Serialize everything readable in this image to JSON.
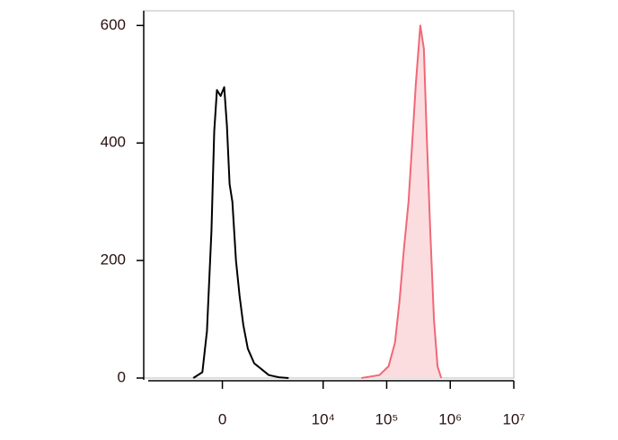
{
  "chart_data": {
    "type": "area",
    "xscale": "arcsinh",
    "xlim": [
      -3800,
      10000000
    ],
    "xticks": [
      0,
      {
        "value": 10000,
        "label": "10⁴"
      },
      {
        "value": 100000,
        "label": "10⁵"
      },
      {
        "value": 1000000,
        "label": "10⁶"
      },
      {
        "value": 10000000,
        "label": "10⁷"
      }
    ],
    "ylim": [
      0,
      625
    ],
    "yticks": [
      0,
      200,
      400,
      600
    ],
    "series": [
      {
        "color": "#000000",
        "fill": "none",
        "x": [
          -655,
          -410,
          -306,
          -211,
          -156,
          -103,
          -34,
          34,
          86,
          138,
          192,
          267,
          346,
          433,
          551,
          742,
          1011,
          1347,
          2033,
          2844
        ],
        "values": [
          0,
          10,
          80,
          250,
          420,
          490,
          480,
          495,
          430,
          330,
          300,
          200,
          140,
          90,
          50,
          25,
          15,
          5,
          1,
          0
        ]
      },
      {
        "color": "#f06878",
        "fill": "#fbdde0",
        "x": [
          40000,
          77000,
          107000,
          135000,
          159000,
          187000,
          221000,
          252000,
          287000,
          338000,
          385000,
          425000,
          485000,
          554000,
          631000,
          721000
        ],
        "values": [
          0,
          5,
          20,
          60,
          130,
          220,
          300,
          400,
          500,
          600,
          560,
          420,
          250,
          100,
          20,
          0
        ]
      }
    ]
  }
}
